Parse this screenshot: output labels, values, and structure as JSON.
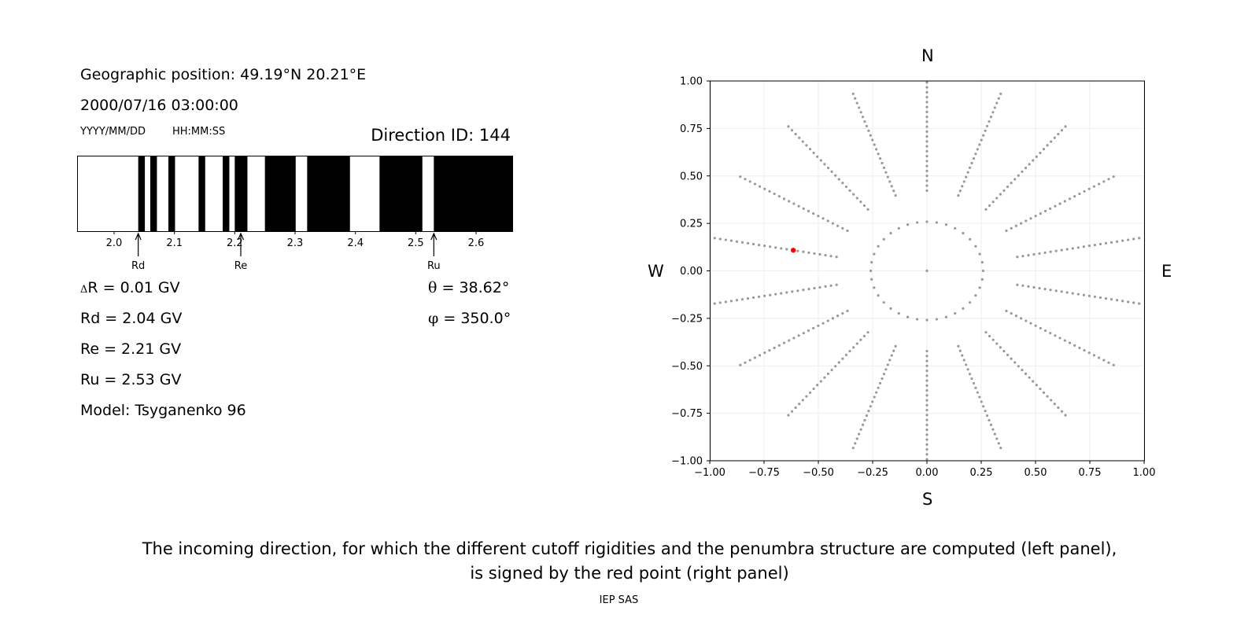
{
  "header": {
    "geo_position": "Geographic position: 49.19°N 20.21°E",
    "datetime": "2000/07/16 03:00:00",
    "date_format": "YYYY/MM/DD",
    "time_format": "HH:MM:SS",
    "direction_id": "Direction ID: 144"
  },
  "results": {
    "delta_symbol": "Δ",
    "delta_r": "R = 0.01 GV",
    "rd": "Rd = 2.04 GV",
    "re": "Re = 2.21 GV",
    "ru": "Ru = 2.53 GV",
    "model": "Model: Tsyganenko 96",
    "theta_symbol": "θ",
    "theta": "= 38.62°",
    "phi_symbol": "φ",
    "phi": "= 350.0°"
  },
  "compass": {
    "n": "N",
    "s": "S",
    "w": "W",
    "e": "E"
  },
  "caption": {
    "line1": "The incoming direction, for which the different cutoff rigidities and the penumbra structure are computed (left panel),",
    "line2": "is signed by the red point (right panel)",
    "credit": "IEP SAS"
  },
  "chart_data": [
    {
      "type": "penumbra-strip",
      "xlim": [
        1.94,
        2.66
      ],
      "xticks": [
        2.0,
        2.1,
        2.2,
        2.3,
        2.4,
        2.5,
        2.6
      ],
      "tick_labels": [
        "2.0",
        "2.1",
        "2.2",
        "2.3",
        "2.4",
        "2.5",
        "2.6"
      ],
      "forbidden_bands": [
        [
          2.04,
          2.051
        ],
        [
          2.06,
          2.071
        ],
        [
          2.09,
          2.101
        ],
        [
          2.14,
          2.151
        ],
        [
          2.18,
          2.191
        ],
        [
          2.2,
          2.221
        ],
        [
          2.25,
          2.301
        ],
        [
          2.32,
          2.391
        ],
        [
          2.44,
          2.511
        ],
        [
          2.53,
          2.66
        ]
      ],
      "markers": [
        {
          "label": "Rd",
          "value": 2.04
        },
        {
          "label": "Re",
          "value": 2.21
        },
        {
          "label": "Ru",
          "value": 2.53
        }
      ],
      "colors": {
        "forbidden": "#000000",
        "allowed": "#ffffff"
      }
    },
    {
      "type": "scatter",
      "xlim": [
        -1.0,
        1.0
      ],
      "ylim": [
        -1.0,
        1.0
      ],
      "xticks": [
        -1.0,
        -0.75,
        -0.5,
        -0.25,
        0.0,
        0.25,
        0.5,
        0.75,
        1.0
      ],
      "yticks": [
        -1.0,
        -0.75,
        -0.5,
        -0.25,
        0.0,
        0.25,
        0.5,
        0.75,
        1.0
      ],
      "xtick_labels": [
        "−1.00",
        "−0.75",
        "−0.50",
        "−0.25",
        "0.00",
        "0.25",
        "0.50",
        "0.75",
        "1.00"
      ],
      "ytick_labels": [
        "−1.00",
        "−0.75",
        "−0.50",
        "−0.25",
        "0.00",
        "0.25",
        "0.50",
        "0.75",
        "1.00"
      ],
      "grid": true,
      "series": [
        {
          "pattern": "polar-grid",
          "zenith_point": true,
          "ring_radii": [
            0.2588,
            0.4226,
            0.5,
            0.5736,
            0.6428,
            0.7071,
            0.766,
            0.8192,
            0.866,
            0.9063,
            0.9397,
            0.9659,
            0.9848,
            0.9962,
            1.0
          ],
          "inner_ring": {
            "radius": 0.2588,
            "azimuth_step_deg": 10
          },
          "radial_lines": {
            "azimuth_step_deg": 20,
            "from_radius": 0.4226,
            "to_radius": 1.0,
            "radius_step": 0.0259
          },
          "color": "#999999"
        },
        {
          "name": "incoming direction",
          "x": [
            -0.6153
          ],
          "y": [
            0.1085
          ],
          "color": "#ff0000"
        }
      ]
    }
  ]
}
